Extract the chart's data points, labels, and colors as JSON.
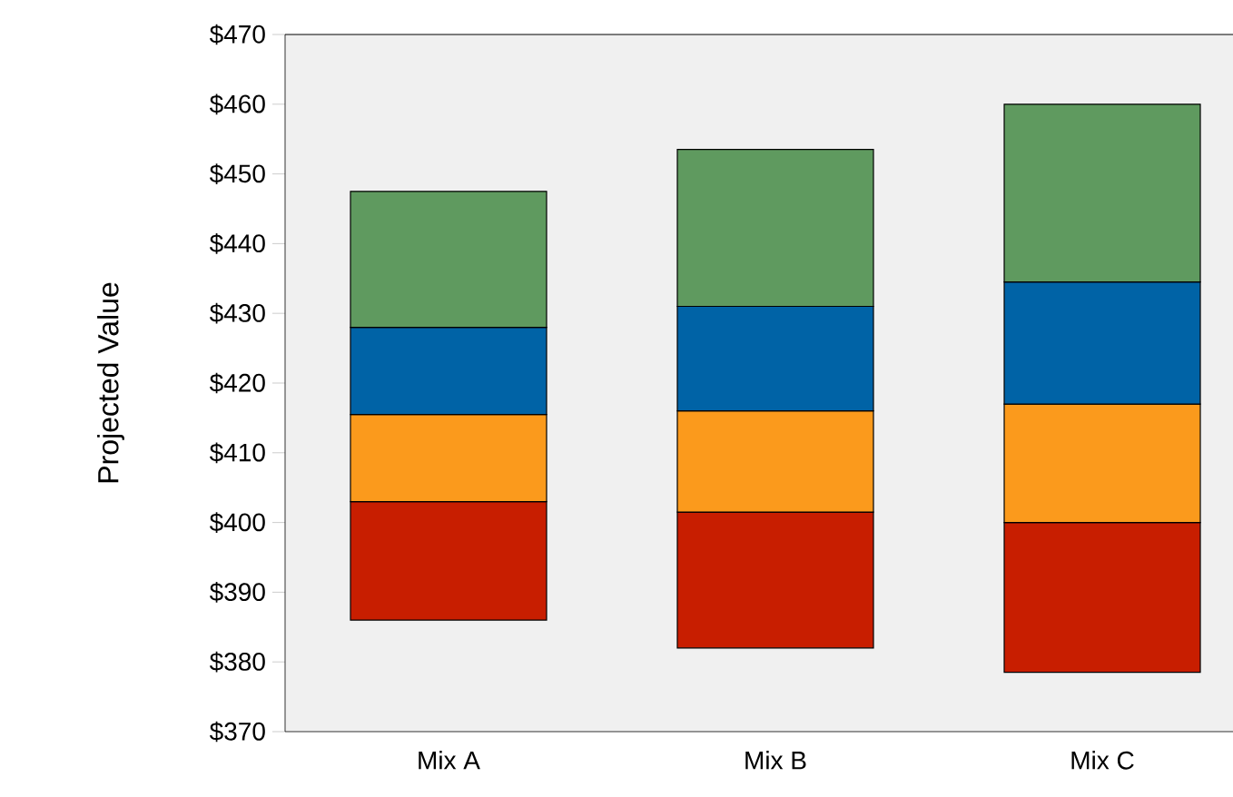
{
  "chart_data": {
    "type": "bar",
    "ylabel": "Projected Value",
    "categories": [
      "Mix A",
      "Mix B",
      "Mix C"
    ],
    "series": [
      {
        "color": "#c81e00",
        "base": [
          386,
          382,
          378.5
        ],
        "values": [
          17,
          19.5,
          21.5
        ]
      },
      {
        "color": "#fb9a1c",
        "base": [
          403,
          401.5,
          400
        ],
        "values": [
          12.5,
          14.5,
          17
        ]
      },
      {
        "color": "#0063a6",
        "base": [
          415.5,
          416,
          417
        ],
        "values": [
          12.5,
          15,
          17.5
        ]
      },
      {
        "color": "#5f9a5f",
        "base": [
          428,
          431,
          434.5
        ],
        "values": [
          19.5,
          22.5,
          25.5
        ]
      }
    ],
    "ylim": [
      370,
      470
    ],
    "yticks": [
      {
        "value": 370,
        "label": "$370"
      },
      {
        "value": 380,
        "label": "$380"
      },
      {
        "value": 390,
        "label": "$390"
      },
      {
        "value": 400,
        "label": "$400"
      },
      {
        "value": 410,
        "label": "$410"
      },
      {
        "value": 420,
        "label": "$420"
      },
      {
        "value": 430,
        "label": "$430"
      },
      {
        "value": 440,
        "label": "$440"
      },
      {
        "value": 450,
        "label": "$450"
      },
      {
        "value": 460,
        "label": "$460"
      },
      {
        "value": 470,
        "label": "$470"
      }
    ],
    "grid": false
  }
}
